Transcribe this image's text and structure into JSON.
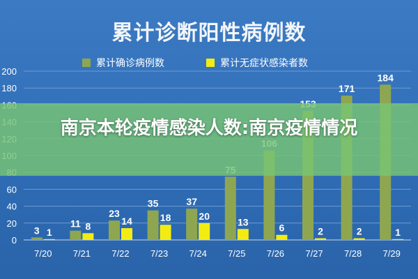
{
  "overlay_caption": "南京本轮疫情感染人数:南京疫情情况",
  "colors": {
    "confirmed": "#8fa651",
    "asymptomatic": "#f3ec13",
    "background": "#3a78c1",
    "overlay": "#78c474"
  },
  "chart_data": {
    "type": "bar",
    "title": "累计诊断阳性病例数",
    "categories": [
      "7/20",
      "7/21",
      "7/22",
      "7/23",
      "7/24",
      "7/25",
      "7/26",
      "7/27",
      "7/28",
      "7/29"
    ],
    "series": [
      {
        "name": "累计确诊病例数",
        "values": [
          3,
          11,
          23,
          35,
          37,
          75,
          106,
          153,
          171,
          184
        ]
      },
      {
        "name": "累计无症状感染者数",
        "values": [
          1,
          8,
          14,
          18,
          20,
          13,
          6,
          2,
          2,
          1
        ]
      }
    ],
    "yticks": [
      "0",
      "20",
      "40",
      "60",
      "80",
      "100",
      "120",
      "140",
      "160",
      "180",
      "200"
    ],
    "ylim": [
      0,
      200
    ],
    "xlabel": "",
    "ylabel": "",
    "grid": true,
    "legend_position": "top"
  }
}
